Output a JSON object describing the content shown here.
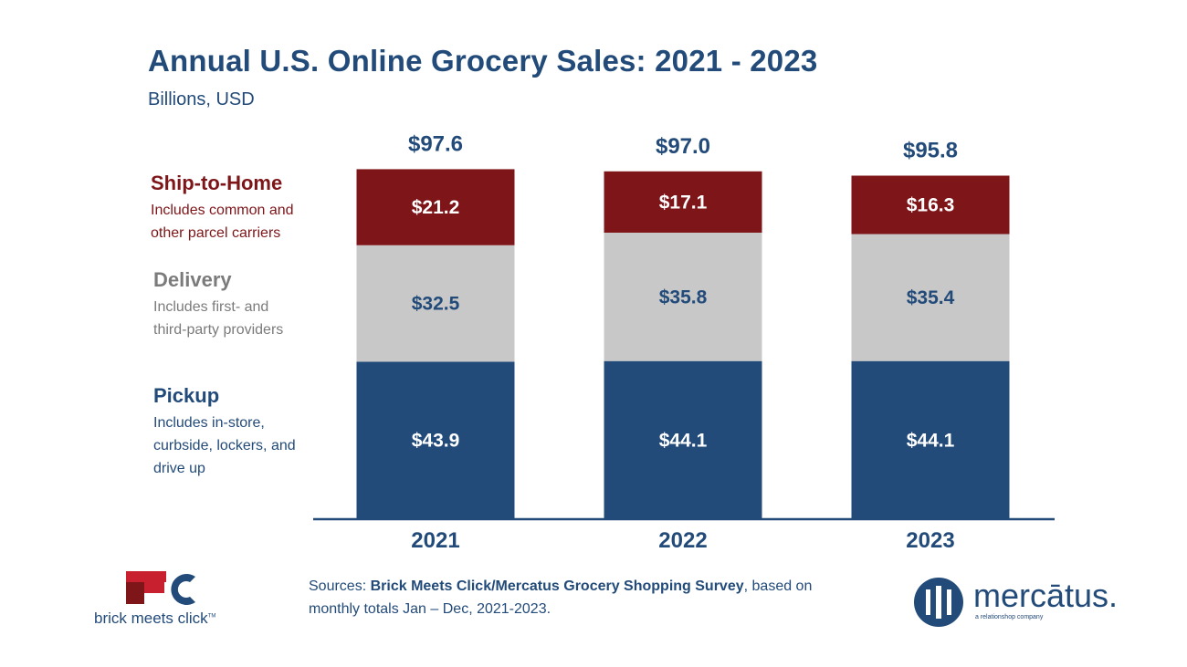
{
  "header": {
    "title": "Annual U.S. Online Grocery Sales: 2021 - 2023",
    "subtitle": "Billions, USD"
  },
  "legend": {
    "ship": {
      "name": "Ship-to-Home",
      "desc1": "Includes common and",
      "desc2": "other parcel carriers",
      "color": "#7e1519"
    },
    "delivery": {
      "name": "Delivery",
      "desc1": "Includes first- and",
      "desc2": "third-party providers",
      "color": "#c8c8c8"
    },
    "pickup": {
      "name": "Pickup",
      "desc1": "Includes in-store,",
      "desc2": "curbside, lockers, and",
      "desc3": "drive up",
      "color": "#234b7a"
    }
  },
  "chart_data": {
    "type": "bar",
    "stacked": true,
    "categories": [
      "2021",
      "2022",
      "2023"
    ],
    "series": [
      {
        "name": "Pickup",
        "values": [
          43.9,
          44.1,
          44.1
        ],
        "labels": [
          "$43.9",
          "$44.1",
          "$44.1"
        ],
        "color": "#234b7a"
      },
      {
        "name": "Delivery",
        "values": [
          32.5,
          35.8,
          35.4
        ],
        "labels": [
          "$32.5",
          "$35.8",
          "$35.4"
        ],
        "color": "#c8c8c8"
      },
      {
        "name": "Ship-to-Home",
        "values": [
          21.2,
          17.1,
          16.3
        ],
        "labels": [
          "$21.2",
          "$17.1",
          "$16.3"
        ],
        "color": "#7e1519"
      }
    ],
    "totals": [
      97.6,
      97.0,
      95.8
    ],
    "total_labels": [
      "$97.6",
      "$97.0",
      "$95.8"
    ],
    "ylabel": "Billions, USD",
    "grid": false,
    "legend_position": "left"
  },
  "footer": {
    "sources_label": "Sources:",
    "sources_bold": "Brick Meets Click/Mercatus Grocery Shopping Survey",
    "sources_rest": ", based on",
    "sources_line2": "monthly totals Jan – Dec, 2021-2023.",
    "bmc_text": "brick meets click",
    "bmc_tm": "TM",
    "merc_word": "mercātus.",
    "merc_tag": "a relationshop company"
  },
  "colors": {
    "navy": "#234b7a",
    "maroon": "#7e1519",
    "gray": "#c8c8c8",
    "red_logo": "#c8202f"
  }
}
